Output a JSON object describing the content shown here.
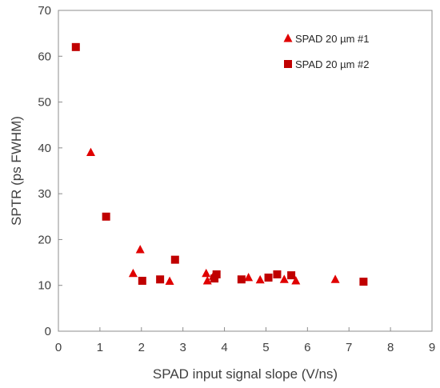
{
  "chart_data": {
    "type": "scatter",
    "xlabel": "SPAD input signal slope (V/ns)",
    "ylabel": "SPTR (ps FWHM)",
    "xlim": [
      0,
      9
    ],
    "ylim": [
      0,
      70
    ],
    "xticks": [
      0,
      1,
      2,
      3,
      4,
      5,
      6,
      7,
      8,
      9
    ],
    "yticks": [
      0,
      10,
      20,
      30,
      40,
      50,
      60,
      70
    ],
    "grid": false,
    "legend_position": "top-right",
    "series": [
      {
        "name": "SPAD 20 µm #1",
        "marker": "triangle",
        "color": "#e00000",
        "points": [
          [
            0.78,
            39.0
          ],
          [
            1.8,
            12.6
          ],
          [
            1.97,
            17.8
          ],
          [
            2.68,
            10.9
          ],
          [
            3.56,
            12.6
          ],
          [
            3.59,
            11.0
          ],
          [
            3.73,
            12.0
          ],
          [
            4.58,
            11.7
          ],
          [
            4.86,
            11.2
          ],
          [
            5.44,
            11.3
          ],
          [
            5.72,
            11.0
          ],
          [
            6.67,
            11.3
          ]
        ]
      },
      {
        "name": "SPAD 20 µm #2",
        "marker": "square",
        "color": "#c00000",
        "points": [
          [
            0.42,
            62.0
          ],
          [
            1.15,
            25.0
          ],
          [
            2.02,
            11.0
          ],
          [
            2.45,
            11.3
          ],
          [
            2.81,
            15.6
          ],
          [
            3.76,
            11.5
          ],
          [
            3.81,
            12.4
          ],
          [
            4.41,
            11.3
          ],
          [
            5.06,
            11.7
          ],
          [
            5.27,
            12.4
          ],
          [
            5.61,
            12.2
          ],
          [
            7.35,
            10.8
          ]
        ]
      }
    ]
  }
}
